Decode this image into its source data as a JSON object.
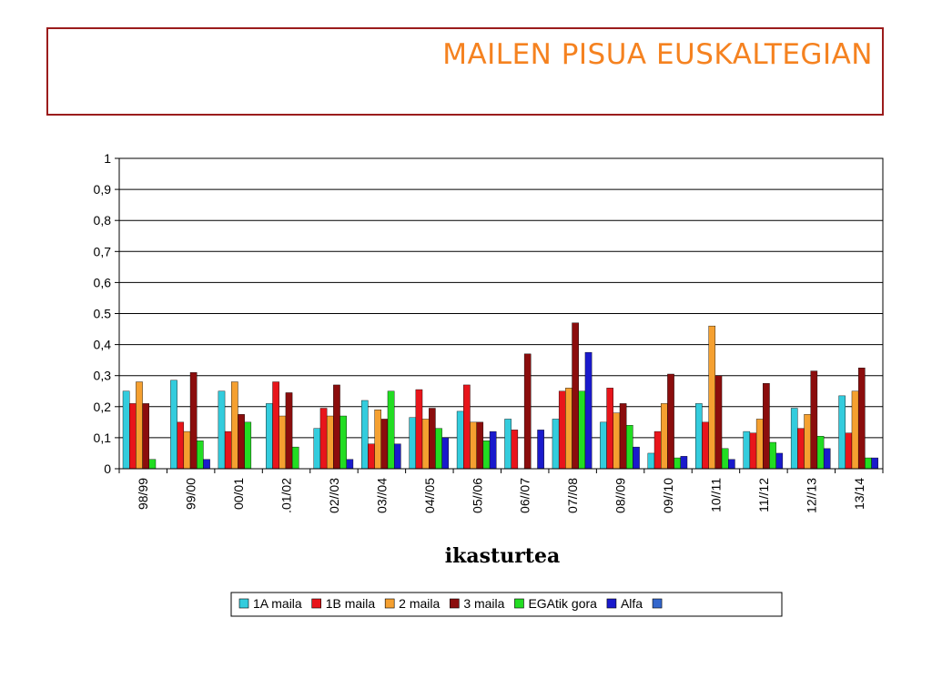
{
  "header": {
    "title": "MAILEN PISUA EUSKALTEGIAN"
  },
  "chart_data": {
    "type": "bar",
    "title": "MAILEN PISUA EUSKALTEGIAN",
    "xlabel": "ikasturtea",
    "ylabel": "",
    "ylim": [
      0,
      1
    ],
    "yticks": [
      "0",
      "0,1",
      "0,2",
      "0,3",
      "0,4",
      "0.5",
      "0,6",
      "0,7",
      "0,8",
      "0,9",
      "1"
    ],
    "grid": true,
    "legend": "bottom",
    "categories": [
      "98/99",
      "99/00",
      "00/01",
      ".01/02",
      "02//03",
      "03//04",
      "04//05",
      "05//06",
      "06//07",
      "07//08",
      "08//09",
      "09//10",
      "10//11",
      "11//12",
      "12//13",
      "13/14"
    ],
    "series": [
      {
        "name": "1A maila",
        "color": "#33ccdd",
        "values": [
          0.25,
          0.285,
          0.25,
          0.21,
          0.13,
          0.22,
          0.165,
          0.185,
          0.16,
          0.16,
          0.15,
          0.05,
          0.21,
          0.12,
          0.195,
          0.235
        ]
      },
      {
        "name": "1B maila",
        "color": "#e8151b",
        "values": [
          0.21,
          0.15,
          0.12,
          0.28,
          0.195,
          0.08,
          0.255,
          0.27,
          0.125,
          0.25,
          0.26,
          0.12,
          0.15,
          0.115,
          0.13,
          0.115
        ]
      },
      {
        "name": "2 maila",
        "color": "#f5a030",
        "values": [
          0.28,
          0.12,
          0.28,
          0.17,
          0.17,
          0.19,
          0.16,
          0.15,
          0.0,
          0.26,
          0.18,
          0.21,
          0.46,
          0.16,
          0.175,
          0.25
        ]
      },
      {
        "name": "3 maila",
        "color": "#8b0d0d",
        "values": [
          0.21,
          0.31,
          0.175,
          0.245,
          0.27,
          0.16,
          0.195,
          0.15,
          0.37,
          0.47,
          0.21,
          0.305,
          0.3,
          0.275,
          0.315,
          0.325
        ]
      },
      {
        "name": "EGAtik gora",
        "color": "#22dd22",
        "values": [
          0.03,
          0.09,
          0.15,
          0.07,
          0.17,
          0.25,
          0.13,
          0.09,
          0.0,
          0.25,
          0.14,
          0.035,
          0.065,
          0.085,
          0.105,
          0.035
        ]
      },
      {
        "name": "Alfa",
        "color": "#1a1acc",
        "values": [
          0.0,
          0.03,
          0.0,
          0.0,
          0.03,
          0.08,
          0.1,
          0.12,
          0.125,
          0.375,
          0.07,
          0.04,
          0.03,
          0.05,
          0.065,
          0.035
        ]
      }
    ],
    "extra_legend_color": "#3366cc"
  }
}
